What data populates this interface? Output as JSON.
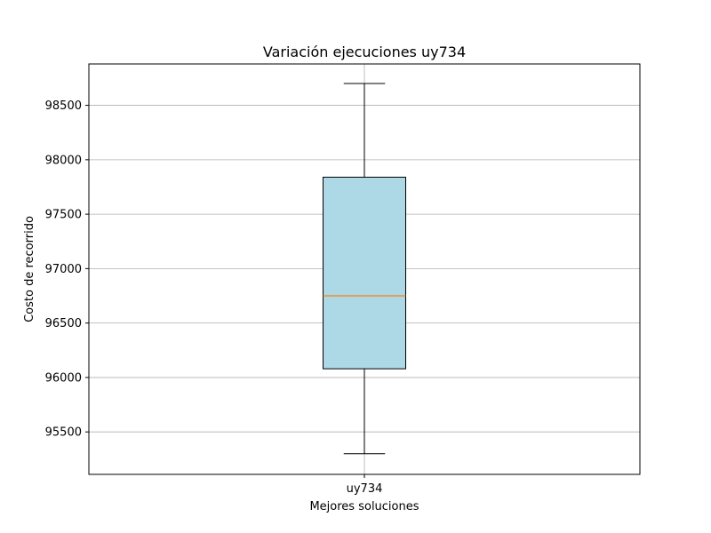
{
  "chart_data": {
    "type": "box",
    "title": "Variación ejecuciones uy734",
    "xlabel": "Mejores soluciones",
    "ylabel": "Costo de recorrido",
    "categories": [
      "uy734"
    ],
    "series": [
      {
        "name": "",
        "box": {
          "whisker_low": 95300,
          "q1": 96080,
          "median": 96750,
          "q3": 97840,
          "whisker_high": 98700
        }
      }
    ],
    "ylim": [
      95110,
      98880
    ],
    "yticks": [
      95500,
      96000,
      96500,
      97000,
      97500,
      98000,
      98500
    ],
    "ytick_labels": [
      "95500",
      "96000",
      "96500",
      "97000",
      "97500",
      "98000",
      "98500"
    ],
    "grid": true,
    "colors": {
      "box_fill": "#add8e6",
      "box_edge": "#000000",
      "median": "#ff7f0e",
      "grid": "#b0b0b0",
      "axes": "#000000"
    }
  }
}
